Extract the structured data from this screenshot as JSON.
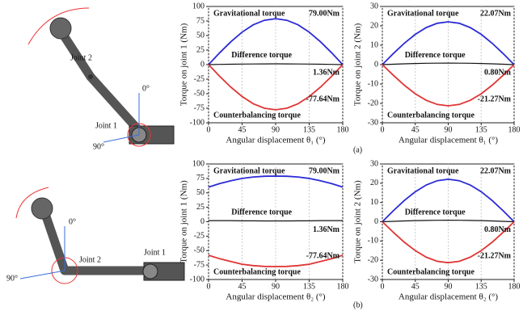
{
  "figure": {
    "top": {
      "joint2": "Joint 2",
      "zero": "0°",
      "joint1": "Joint 1",
      "ninety": "90°",
      "caption": "(a)"
    },
    "bottom": {
      "zero": "0°",
      "joint2": "Joint 2",
      "joint1": "Joint 1",
      "ninety": "90°",
      "caption": "(b)"
    }
  },
  "chart_data": [
    {
      "type": "line",
      "x": [
        0,
        15,
        30,
        45,
        60,
        75,
        90,
        105,
        120,
        135,
        150,
        165,
        180
      ],
      "xlim": [
        0,
        180
      ],
      "xticks": [
        0,
        45,
        90,
        135,
        180
      ],
      "ylim": [
        -100,
        100
      ],
      "yticks": [
        -100,
        -75,
        -50,
        -25,
        0,
        25,
        50,
        75,
        100
      ],
      "grid": "x",
      "x_label": "Angular displacement θ₁ (°)",
      "y_label": "Torque on joint 1 (Nm)",
      "series": [
        {
          "name": "Gravitational torque",
          "color": "#2b2bd6",
          "values": [
            0,
            20.45,
            39.5,
            55.86,
            68.42,
            76.31,
            79,
            76.31,
            68.42,
            55.86,
            39.5,
            20.45,
            0
          ]
        },
        {
          "name": "Difference torque",
          "color": "#111111",
          "values": [
            0,
            0.35,
            0.68,
            0.96,
            1.18,
            1.31,
            1.36,
            1.31,
            1.18,
            0.96,
            0.68,
            0.35,
            0
          ]
        },
        {
          "name": "Counterbalancing torque",
          "color": "#e03434",
          "values": [
            0,
            -20.09,
            -38.82,
            -54.9,
            -67.24,
            -74.99,
            -77.64,
            -74.99,
            -67.24,
            -54.9,
            -38.82,
            -20.09,
            0
          ]
        }
      ],
      "annotations": [
        "79.00Nm",
        "1.36Nm",
        "-77.64Nm"
      ]
    },
    {
      "type": "line",
      "x": [
        0,
        15,
        30,
        45,
        60,
        75,
        90,
        105,
        120,
        135,
        150,
        165,
        180
      ],
      "xlim": [
        0,
        180
      ],
      "xticks": [
        0,
        45,
        90,
        135,
        180
      ],
      "ylim": [
        -30,
        30
      ],
      "yticks": [
        -30,
        -20,
        -10,
        0,
        10,
        20,
        30
      ],
      "grid": "x",
      "x_label": "Angular displacement θ₁ (°)",
      "y_label": "Torque on joint 2 (Nm)",
      "series": [
        {
          "name": "Gravitational torque",
          "color": "#2b2bd6",
          "values": [
            0,
            5.71,
            11.04,
            15.61,
            19.11,
            21.32,
            22.07,
            21.32,
            19.11,
            15.61,
            11.04,
            5.71,
            0
          ]
        },
        {
          "name": "Difference torque",
          "color": "#111111",
          "values": [
            0,
            0.21,
            0.4,
            0.57,
            0.69,
            0.77,
            0.8,
            0.77,
            0.69,
            0.57,
            0.4,
            0.21,
            0
          ]
        },
        {
          "name": "Counterbalancing torque",
          "color": "#e03434",
          "values": [
            0,
            -5.51,
            -10.64,
            -15.04,
            -18.42,
            -20.55,
            -21.27,
            -20.55,
            -18.42,
            -15.04,
            -10.64,
            -5.51,
            0
          ]
        }
      ],
      "annotations": [
        "22.07Nm",
        "0.80Nm",
        "-21.27Nm"
      ]
    },
    {
      "type": "line",
      "x": [
        0,
        15,
        30,
        45,
        60,
        75,
        90,
        105,
        120,
        135,
        150,
        165,
        180
      ],
      "xlim": [
        0,
        180
      ],
      "xticks": [
        0,
        45,
        90,
        135,
        180
      ],
      "ylim": [
        -100,
        100
      ],
      "yticks": [
        -100,
        -75,
        -50,
        -25,
        0,
        25,
        50,
        75,
        100
      ],
      "grid": "x",
      "x_label": "Angular displacement θ₂ (°)",
      "y_label": "Torque on joint 1 (Nm)",
      "series": [
        {
          "name": "Gravitational torque",
          "color": "#2b2bd6",
          "values": [
            60,
            66,
            71,
            75,
            77.5,
            78.7,
            79,
            78.7,
            77.5,
            75,
            71,
            66,
            60
          ]
        },
        {
          "name": "Difference torque",
          "color": "#111111",
          "values": [
            2,
            2,
            2,
            1.5,
            1.5,
            1.4,
            1.36,
            1.4,
            1.5,
            1.5,
            2,
            2,
            2
          ]
        },
        {
          "name": "Counterbalancing torque",
          "color": "#e03434",
          "values": [
            -58,
            -64,
            -69,
            -73.5,
            -76,
            -77.3,
            -77.64,
            -77.3,
            -76,
            -73.5,
            -69,
            -64,
            -58
          ]
        }
      ],
      "annotations": [
        "79.00Nm",
        "1.36Nm",
        "-77.64Nm"
      ]
    },
    {
      "type": "line",
      "x": [
        0,
        15,
        30,
        45,
        60,
        75,
        90,
        105,
        120,
        135,
        150,
        165,
        180
      ],
      "xlim": [
        0,
        180
      ],
      "xticks": [
        0,
        45,
        90,
        135,
        180
      ],
      "ylim": [
        -30,
        30
      ],
      "yticks": [
        -30,
        -20,
        -10,
        0,
        10,
        20,
        30
      ],
      "grid": "x",
      "x_label": "Angular displacement θ₂ (°)",
      "y_label": "Torque on joint 2 (Nm)",
      "series": [
        {
          "name": "Gravitational torque",
          "color": "#2b2bd6",
          "values": [
            0,
            5.71,
            11.04,
            15.61,
            19.11,
            21.32,
            22.07,
            21.32,
            19.11,
            15.61,
            11.04,
            5.71,
            0
          ]
        },
        {
          "name": "Difference torque",
          "color": "#111111",
          "values": [
            0,
            0.21,
            0.4,
            0.57,
            0.69,
            0.77,
            0.8,
            0.77,
            0.69,
            0.57,
            0.4,
            0.21,
            0
          ]
        },
        {
          "name": "Counterbalancing torque",
          "color": "#e03434",
          "values": [
            0,
            -5.51,
            -10.64,
            -15.04,
            -18.42,
            -20.55,
            -21.27,
            -20.55,
            -18.42,
            -15.04,
            -10.64,
            -5.51,
            0
          ]
        }
      ],
      "annotations": [
        "22.07Nm",
        "0.80Nm",
        "-21.27Nm"
      ]
    }
  ]
}
